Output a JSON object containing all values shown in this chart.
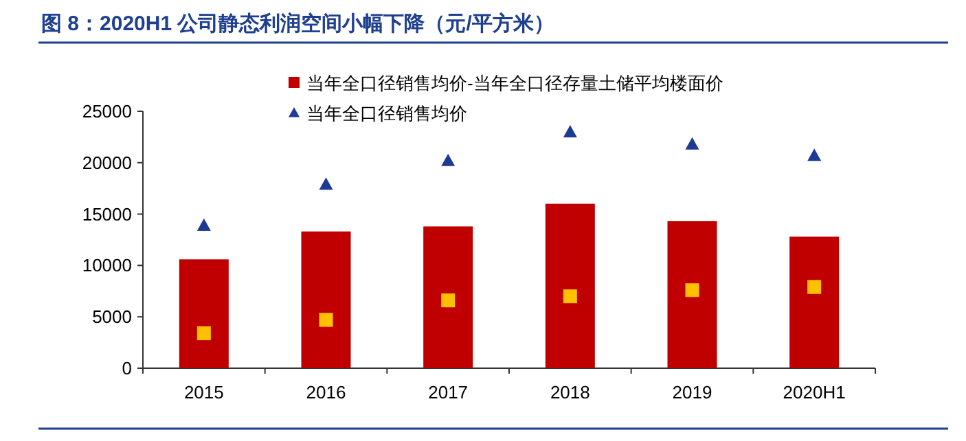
{
  "chart_data": {
    "type": "bar",
    "title": "图 8：2020H1 公司静态利润空间小幅下降（元/平方米）",
    "categories": [
      "2015",
      "2016",
      "2017",
      "2018",
      "2019",
      "2020H1"
    ],
    "series": [
      {
        "name": "当年全口径销售均价-当年全口径存量土储平均楼面价",
        "color": "#c00000",
        "values": [
          10600,
          13300,
          13800,
          16000,
          14300,
          12800
        ]
      },
      {
        "type": "scatter",
        "name": "当年全口径销售均价",
        "color": "#1f3a93",
        "marker": "triangle",
        "values": [
          13900,
          17900,
          20200,
          23000,
          21800,
          20700
        ]
      },
      {
        "type": "scatter",
        "color": "#ffc000",
        "marker": "square",
        "values": [
          3400,
          4700,
          6600,
          7000,
          7600,
          7900
        ]
      }
    ],
    "ylim": [
      0,
      25000
    ],
    "yticks": [
      0,
      5000,
      10000,
      15000,
      20000,
      25000
    ],
    "legend": "top"
  }
}
